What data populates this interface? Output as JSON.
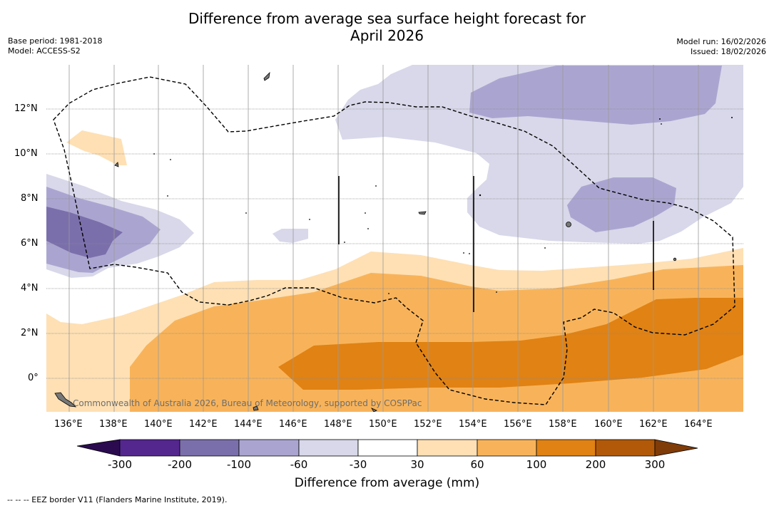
{
  "header": {
    "title_line1": "Difference from average sea surface height forecast for",
    "title_line2": "April 2026",
    "base_period": "Base period: 1981-2018",
    "model": "Model: ACCESS-S2",
    "model_run": "Model run: 16/02/2026",
    "issued": "Issued: 18/02/2026"
  },
  "map": {
    "lon_labels": [
      "136°E",
      "138°E",
      "140°E",
      "142°E",
      "144°E",
      "146°E",
      "148°E",
      "150°E",
      "152°E",
      "154°E",
      "156°E",
      "158°E",
      "160°E",
      "162°E",
      "164°E"
    ],
    "lat_labels": [
      "12°N",
      "10°N",
      "8°N",
      "6°N",
      "4°N",
      "2°N",
      "0°"
    ],
    "attribution": "Commonwealth of Australia 2026, Bureau of Meteorology, supported by COSPPac",
    "legend_colors": {
      "lt_neg300": "#2b0a4f",
      "neg300_neg200": "#54278f",
      "neg200_neg100": "#7b6fab",
      "neg100_neg60": "#aaa5d0",
      "neg60_neg30": "#d8d8ea",
      "neg30_30": "#ffffff",
      "p30_60": "#fee0b4",
      "p60_100": "#f8b35a",
      "p100_200": "#e08214",
      "p200_300": "#b25909",
      "gt_300": "#7f3b08"
    }
  },
  "colorbar": {
    "labels": [
      "-300",
      "-200",
      "-100",
      "-60",
      "-30",
      "30",
      "60",
      "100",
      "200",
      "300"
    ],
    "title": "Difference from average (mm)"
  },
  "footnote": "--  --  -- EEZ border V11 (Flanders Marine Institute, 2019)."
}
